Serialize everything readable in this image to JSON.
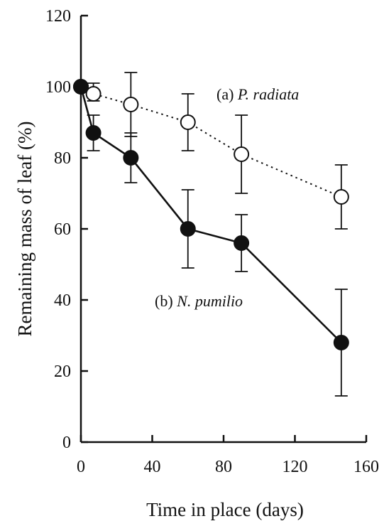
{
  "chart_data": {
    "type": "line",
    "xlabel": "Time in place (days)",
    "ylabel": "Remaining mass of leaf (%)",
    "xlim": [
      0,
      160
    ],
    "ylim": [
      0,
      120
    ],
    "xticks": [
      0,
      40,
      80,
      120,
      160
    ],
    "yticks": [
      0,
      20,
      40,
      60,
      80,
      100,
      120
    ],
    "grid": false,
    "series": [
      {
        "name": "(a) P. radiata",
        "label_prefix": "(a) ",
        "label_italic": "P. radiata",
        "style": "dotted",
        "marker": "open-circle",
        "color": "#111111",
        "x": [
          0,
          7,
          28,
          60,
          90,
          146
        ],
        "y": [
          100,
          98,
          95,
          90,
          81,
          69
        ],
        "err_low": [
          100,
          96,
          86,
          82,
          70,
          60
        ],
        "err_high": [
          100,
          101,
          104,
          98,
          92,
          78
        ]
      },
      {
        "name": "(b) N. pumilio",
        "label_prefix": "(b) ",
        "label_italic": "N. pumilio",
        "style": "solid",
        "marker": "filled-circle",
        "color": "#111111",
        "x": [
          0,
          7,
          28,
          60,
          90,
          146
        ],
        "y": [
          100,
          87,
          80,
          60,
          56,
          28
        ],
        "err_low": [
          100,
          82,
          73,
          49,
          48,
          13
        ],
        "err_high": [
          100,
          92,
          87,
          71,
          64,
          43
        ]
      }
    ]
  }
}
